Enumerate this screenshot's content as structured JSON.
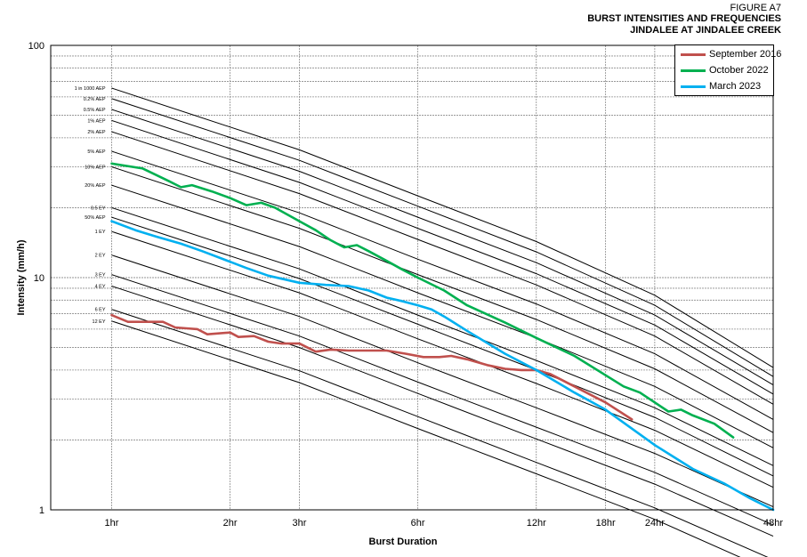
{
  "header": {
    "figure": "FIGURE A7",
    "title_line1": "BURST INTENSITIES AND FREQUENCIES",
    "title_line2": "JINDALEE AT JINDALEE CREEK"
  },
  "chart_data": {
    "type": "line",
    "title": "BURST INTENSITIES AND FREQUENCIES JINDALEE AT JINDALEE CREEK",
    "xlabel": "Burst Duration",
    "ylabel": "Intensity (mm/h)",
    "x_scale": "log",
    "y_scale": "log",
    "x_ticks": [
      {
        "hours": 1,
        "label": "1hr"
      },
      {
        "hours": 2,
        "label": "2hr"
      },
      {
        "hours": 3,
        "label": "3hr"
      },
      {
        "hours": 6,
        "label": "6hr"
      },
      {
        "hours": 12,
        "label": "12hr"
      },
      {
        "hours": 18,
        "label": "18hr"
      },
      {
        "hours": 24,
        "label": "24hr"
      },
      {
        "hours": 48,
        "label": "48hr"
      }
    ],
    "y_ticks": [
      {
        "value": 1,
        "label": "1"
      },
      {
        "value": 10,
        "label": "10"
      },
      {
        "value": 100,
        "label": "100"
      }
    ],
    "xlim": [
      0.7,
      48
    ],
    "ylim": [
      1,
      100
    ],
    "grid": true,
    "legend_position": "top-right",
    "ifd_curves": [
      {
        "label": "1 in 1000 AEP",
        "i1": 65.5,
        "i3": 35.5,
        "i6": 22.5,
        "i12": 14.3,
        "i24": 8.4,
        "i48": 4.1
      },
      {
        "label": "0.2% AEP",
        "i1": 59.0,
        "i3": 32.0,
        "i6": 20.3,
        "i12": 12.9,
        "i24": 7.6,
        "i48": 3.75
      },
      {
        "label": "0.5% AEP",
        "i1": 53.0,
        "i3": 28.7,
        "i6": 18.2,
        "i12": 11.6,
        "i24": 6.9,
        "i48": 3.45
      },
      {
        "label": "1% AEP",
        "i1": 47.5,
        "i3": 25.7,
        "i6": 16.3,
        "i12": 10.4,
        "i24": 6.25,
        "i48": 3.15
      },
      {
        "label": "2% AEP",
        "i1": 42.5,
        "i3": 23.0,
        "i6": 14.6,
        "i12": 9.3,
        "i24": 5.6,
        "i48": 2.85
      },
      {
        "label": "5% AEP",
        "i1": 35.0,
        "i3": 19.0,
        "i6": 12.0,
        "i12": 7.7,
        "i24": 4.7,
        "i48": 2.45
      },
      {
        "label": "10% AEP",
        "i1": 30.0,
        "i3": 16.3,
        "i6": 10.3,
        "i12": 6.6,
        "i24": 4.05,
        "i48": 2.15
      },
      {
        "label": "20% AEP",
        "i1": 25.0,
        "i3": 13.6,
        "i6": 8.6,
        "i12": 5.5,
        "i24": 3.4,
        "i48": 1.85
      },
      {
        "label": "0.5 EY",
        "i1": 20.0,
        "i3": 10.9,
        "i6": 6.9,
        "i12": 4.4,
        "i24": 2.75,
        "i48": 1.55
      },
      {
        "label": "50% AEP",
        "i1": 18.2,
        "i3": 9.9,
        "i6": 6.3,
        "i12": 4.0,
        "i24": 2.5,
        "i48": 1.4
      },
      {
        "label": "1 EY",
        "i1": 15.8,
        "i3": 8.6,
        "i6": 5.45,
        "i12": 3.5,
        "i24": 2.2,
        "i48": 1.25
      },
      {
        "label": "2 EY",
        "i1": 12.5,
        "i3": 6.8,
        "i6": 4.3,
        "i12": 2.75,
        "i24": 1.75,
        "i48": 1.03
      },
      {
        "label": "3 EY",
        "i1": 10.3,
        "i3": 5.6,
        "i6": 3.55,
        "i12": 2.27,
        "i24": 1.45,
        "i48": 0.86
      },
      {
        "label": "4 EY",
        "i1": 9.2,
        "i3": 5.0,
        "i6": 3.17,
        "i12": 2.02,
        "i24": 1.29,
        "i48": 0.77
      },
      {
        "label": "6 EY",
        "i1": 7.3,
        "i3": 3.97,
        "i6": 2.52,
        "i12": 1.6,
        "i24": 1.02,
        "i48": 0.61
      },
      {
        "label": "12 EY",
        "i1": 6.5,
        "i3": 3.53,
        "i6": 2.24,
        "i12": 1.43,
        "i24": 0.91,
        "i48": 0.54
      }
    ],
    "series": [
      {
        "name": "September 2016",
        "color": "#c0504d",
        "x": [
          1,
          1.1,
          1.2,
          1.35,
          1.45,
          1.55,
          1.65,
          1.75,
          2.0,
          2.1,
          2.3,
          2.5,
          2.7,
          3.0,
          3.3,
          3.6,
          4.0,
          4.5,
          5.0,
          5.6,
          6.2,
          6.8,
          7.3,
          8.0,
          9.0,
          10.0,
          11.0,
          12.0,
          13.0,
          15.0,
          18.0,
          21.0
        ],
        "y": [
          6.9,
          6.45,
          6.45,
          6.45,
          6.1,
          6.05,
          6.0,
          5.7,
          5.8,
          5.55,
          5.6,
          5.3,
          5.2,
          5.2,
          4.8,
          4.9,
          4.85,
          4.85,
          4.85,
          4.7,
          4.55,
          4.55,
          4.6,
          4.45,
          4.2,
          4.05,
          4.0,
          4.0,
          3.85,
          3.4,
          2.9,
          2.45
        ]
      },
      {
        "name": "October 2022",
        "color": "#00b050",
        "x": [
          1,
          1.2,
          1.4,
          1.5,
          1.6,
          1.8,
          2.0,
          2.2,
          2.4,
          2.6,
          3.0,
          3.3,
          3.6,
          3.9,
          4.2,
          4.5,
          5.0,
          5.5,
          6.0,
          7.0,
          8.0,
          10.0,
          12.0,
          15.0,
          18.0,
          20.0,
          22.0,
          24.0,
          26.0,
          28.0,
          30.0,
          34.0,
          38.0
        ],
        "y": [
          31.0,
          29.5,
          26.0,
          24.5,
          25.0,
          23.5,
          22.0,
          20.5,
          21.0,
          20.0,
          17.5,
          16.0,
          14.5,
          13.5,
          13.8,
          13.0,
          11.8,
          10.8,
          10.0,
          8.8,
          7.6,
          6.4,
          5.5,
          4.6,
          3.8,
          3.4,
          3.2,
          2.9,
          2.65,
          2.7,
          2.55,
          2.35,
          2.05
        ]
      },
      {
        "name": "March 2023",
        "color": "#00b0f0",
        "x": [
          1,
          1.15,
          1.3,
          1.5,
          1.7,
          2.0,
          2.2,
          2.5,
          3.0,
          3.5,
          4.0,
          4.5,
          5.0,
          5.5,
          6.0,
          6.5,
          7.0,
          8.0,
          10.0,
          12.0,
          15.0,
          18.0,
          24.0,
          30.0,
          36.0,
          42.0,
          48.0
        ],
        "y": [
          17.5,
          16.0,
          15.0,
          14.0,
          13.0,
          11.7,
          11.0,
          10.2,
          9.5,
          9.3,
          9.2,
          8.8,
          8.2,
          7.9,
          7.6,
          7.3,
          6.8,
          5.9,
          4.7,
          4.0,
          3.2,
          2.7,
          1.9,
          1.5,
          1.3,
          1.12,
          1.0
        ]
      }
    ]
  }
}
